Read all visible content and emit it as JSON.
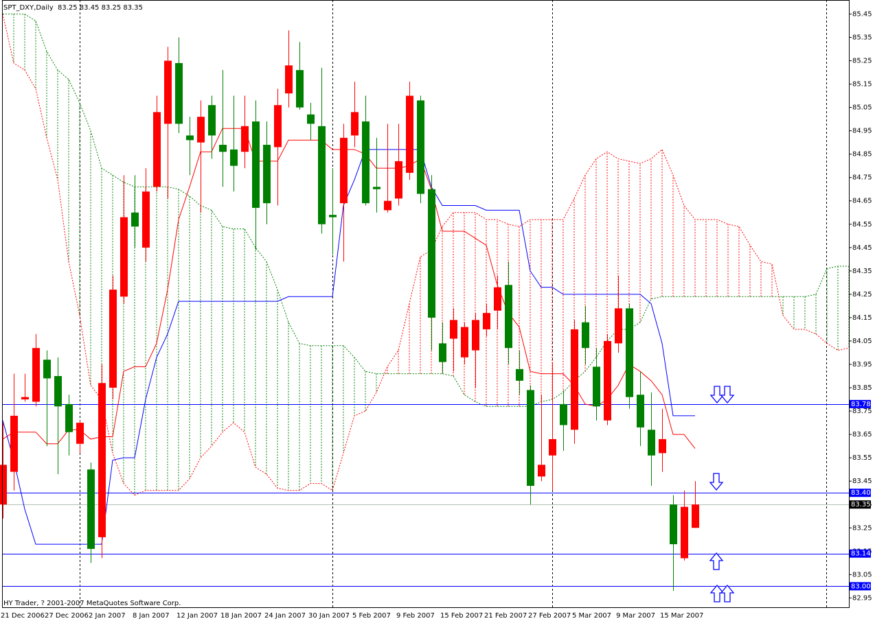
{
  "chart_data": {
    "type": "candlestick",
    "title": "SPT_DXY,Daily  83.25 83.45 83.25 83.35",
    "footer": "HY Trader, ? 2001-2007 MetaQuotes Software Corp.",
    "categories": [
      "21 Dec 2006",
      null,
      null,
      null,
      "27 Dec 2006",
      null,
      null,
      null,
      "2 Jan 2007",
      null,
      null,
      null,
      "8 Jan 2007",
      null,
      null,
      null,
      "12 Jan 2007",
      null,
      null,
      null,
      "18 Jan 2007",
      null,
      null,
      null,
      "24 Jan 2007",
      null,
      null,
      null,
      "30 Jan 2007",
      null,
      null,
      null,
      "5 Feb 2007",
      null,
      null,
      null,
      "9 Feb 2007",
      null,
      null,
      null,
      "15 Feb 2007",
      null,
      null,
      null,
      "21 Feb 2007",
      null,
      null,
      null,
      "27 Feb 2007",
      null,
      null,
      null,
      "5 Mar 2007",
      null,
      null,
      null,
      "9 Mar 2007",
      null,
      null,
      null,
      "15 Mar 2007",
      null,
      null,
      null,
      null,
      null,
      null,
      null,
      null,
      null,
      null,
      null,
      null,
      null,
      null,
      null,
      null,
      null
    ],
    "open": [
      83.35,
      83.49,
      83.8,
      83.79,
      83.97,
      83.9,
      83.78,
      83.61,
      83.5,
      83.21,
      83.85,
      84.24,
      84.6,
      84.45,
      84.71,
      84.98,
      85.24,
      84.93,
      84.9,
      85.06,
      84.89,
      84.87,
      84.86,
      84.99,
      84.89,
      84.88,
      85.11,
      85.21,
      85.02,
      84.97,
      84.59,
      84.64,
      84.93,
      84.99,
      84.71,
      84.61,
      84.66,
      84.77,
      85.08,
      84.7,
      84.04,
      84.06,
      83.98,
      84.01,
      84.1,
      84.18,
      84.29,
      83.93,
      83.84,
      83.47,
      83.56,
      83.78,
      83.67,
      84.13,
      83.94,
      83.71,
      84.04,
      84.19,
      83.82,
      83.67,
      83.57,
      83.35,
      83.12,
      83.25,
      null,
      null,
      null,
      null,
      null,
      null,
      null,
      null,
      null,
      null,
      null,
      null,
      null,
      null
    ],
    "high": [
      83.7,
      83.91,
      83.91,
      84.08,
      84.01,
      83.98,
      83.82,
      83.71,
      83.53,
      83.95,
      84.33,
      84.76,
      84.76,
      84.79,
      85.1,
      85.31,
      85.35,
      85.01,
      85.08,
      85.1,
      85.21,
      85.1,
      85.1,
      85.08,
      84.99,
      85.13,
      85.38,
      85.33,
      85.07,
      85.22,
      84.79,
      84.98,
      85.16,
      85.1,
      84.92,
      84.98,
      84.98,
      85.16,
      85.1,
      84.76,
      84.13,
      84.19,
      84.13,
      84.17,
      84.21,
      84.33,
      84.39,
      84.01,
      83.86,
      83.82,
      83.96,
      83.84,
      84.14,
      84.2,
      84.02,
      84.08,
      84.33,
      84.21,
      83.92,
      83.83,
      83.76,
      83.39,
      83.41,
      83.45,
      null,
      null,
      null,
      null,
      null,
      null,
      null,
      null,
      null,
      null,
      null,
      null,
      null,
      null
    ],
    "low": [
      83.29,
      83.41,
      83.79,
      83.77,
      83.6,
      83.48,
      83.56,
      83.57,
      83.1,
      83.12,
      83.8,
      84.21,
      84.45,
      84.39,
      84.69,
      84.66,
      84.94,
      84.76,
      84.6,
      84.83,
      84.71,
      84.69,
      84.79,
      84.44,
      84.55,
      84.63,
      85.05,
      85.04,
      84.91,
      84.51,
      84.42,
      84.39,
      84.88,
      84.63,
      84.6,
      84.6,
      84.63,
      84.74,
      84.64,
      84.01,
      83.91,
      83.92,
      83.95,
      83.85,
      84.07,
      84.1,
      83.95,
      83.82,
      83.35,
      83.45,
      83.41,
      83.58,
      83.61,
      83.95,
      83.71,
      83.69,
      84.0,
      83.76,
      83.6,
      83.43,
      83.49,
      82.98,
      83.11,
      83.25,
      null,
      null,
      null,
      null,
      null,
      null,
      null,
      null,
      null,
      null,
      null,
      null,
      null,
      null
    ],
    "close": [
      83.52,
      83.73,
      83.81,
      84.02,
      83.89,
      83.77,
      83.66,
      83.7,
      83.16,
      83.87,
      84.27,
      84.58,
      84.54,
      84.69,
      85.03,
      85.25,
      84.98,
      84.91,
      85.01,
      84.93,
      84.86,
      84.8,
      84.97,
      84.62,
      84.64,
      85.06,
      85.23,
      85.05,
      84.98,
      84.55,
      84.58,
      84.92,
      85.03,
      84.64,
      84.7,
      84.65,
      84.82,
      85.1,
      84.68,
      84.15,
      83.96,
      84.14,
      84.11,
      84.14,
      84.17,
      84.28,
      84.02,
      83.88,
      83.43,
      83.52,
      83.63,
      83.69,
      84.1,
      84.02,
      83.77,
      84.05,
      84.19,
      83.81,
      83.68,
      83.56,
      83.63,
      83.18,
      83.34,
      83.35,
      null,
      null,
      null,
      null,
      null,
      null,
      null,
      null,
      null,
      null,
      null,
      null,
      null,
      null
    ],
    "up_color": "#ff0000",
    "down_color": "#008000",
    "tenkan": {
      "color": "#ff0000",
      "values": [
        83.63,
        83.66,
        83.66,
        83.66,
        83.61,
        83.61,
        83.67,
        83.67,
        83.63,
        83.64,
        83.64,
        83.92,
        83.94,
        83.94,
        84.04,
        84.27,
        84.57,
        84.71,
        84.86,
        84.86,
        84.96,
        84.96,
        84.96,
        84.82,
        84.82,
        84.82,
        84.91,
        84.91,
        84.91,
        84.91,
        84.87,
        84.87,
        84.87,
        84.85,
        84.79,
        84.79,
        84.79,
        84.8,
        84.83,
        84.7,
        84.52,
        84.52,
        84.52,
        84.49,
        84.46,
        84.29,
        84.17,
        84.11,
        83.92,
        83.91,
        83.91,
        83.91,
        83.86,
        83.78,
        83.77,
        83.8,
        83.86,
        83.95,
        83.92,
        83.88,
        83.82,
        83.65,
        83.65,
        83.59,
        null,
        null,
        null,
        null,
        null,
        null,
        null,
        null,
        null,
        null,
        null,
        null,
        null,
        null
      ]
    },
    "kijun": {
      "color": "#0000ff",
      "values": [
        83.71,
        83.54,
        83.33,
        83.18,
        83.18,
        83.18,
        83.18,
        83.18,
        83.18,
        83.18,
        83.54,
        83.55,
        83.55,
        83.8,
        83.98,
        84.08,
        84.22,
        84.22,
        84.22,
        84.22,
        84.22,
        84.22,
        84.22,
        84.22,
        84.22,
        84.22,
        84.24,
        84.24,
        84.24,
        84.24,
        84.24,
        84.63,
        84.74,
        84.87,
        84.87,
        84.87,
        84.87,
        84.87,
        84.87,
        84.71,
        84.63,
        84.63,
        84.63,
        84.63,
        84.61,
        84.61,
        84.61,
        84.61,
        84.35,
        84.28,
        84.28,
        84.25,
        84.25,
        84.25,
        84.25,
        84.25,
        84.25,
        84.25,
        84.25,
        84.21,
        84.04,
        83.73,
        83.73,
        83.73,
        null,
        null,
        null,
        null,
        null,
        null,
        null,
        null,
        null,
        null,
        null,
        null,
        null,
        null
      ]
    },
    "span_green": {
      "color": "#008000",
      "values": [
        85.45,
        85.45,
        85.45,
        85.42,
        85.29,
        85.21,
        85.17,
        85.07,
        84.95,
        84.79,
        84.76,
        84.73,
        84.71,
        84.71,
        84.71,
        84.71,
        84.7,
        84.67,
        84.63,
        84.61,
        84.54,
        84.53,
        84.53,
        84.45,
        84.39,
        84.27,
        84.13,
        84.04,
        84.03,
        84.03,
        84.03,
        84.03,
        83.98,
        83.92,
        83.91,
        83.91,
        83.91,
        83.91,
        83.91,
        83.91,
        83.91,
        83.9,
        83.82,
        83.79,
        83.77,
        83.77,
        83.77,
        83.77,
        83.77,
        83.79,
        83.8,
        83.83,
        83.88,
        83.92,
        83.98,
        84.05,
        84.1,
        84.1,
        84.13,
        84.23,
        84.24,
        84.24,
        84.24,
        84.24,
        84.24,
        84.24,
        84.24,
        84.24,
        84.24,
        84.24,
        84.24,
        84.24,
        84.24,
        84.24,
        84.25,
        84.36,
        84.37,
        84.37
      ]
    },
    "span_red": {
      "color": "#ff0000",
      "values": [
        85.45,
        85.24,
        85.21,
        85.13,
        84.92,
        84.74,
        84.39,
        84.16,
        83.86,
        83.8,
        83.57,
        83.44,
        83.39,
        83.41,
        83.41,
        83.41,
        83.41,
        83.46,
        83.55,
        83.6,
        83.66,
        83.7,
        83.66,
        83.51,
        83.48,
        83.42,
        83.41,
        83.41,
        83.44,
        83.44,
        83.41,
        83.57,
        83.73,
        83.75,
        83.83,
        83.94,
        84.01,
        84.21,
        84.41,
        84.44,
        84.54,
        84.6,
        84.6,
        84.6,
        84.57,
        84.57,
        84.55,
        84.54,
        84.57,
        84.57,
        84.57,
        84.57,
        84.66,
        84.76,
        84.83,
        84.86,
        84.83,
        84.82,
        84.81,
        84.83,
        84.87,
        84.76,
        84.63,
        84.57,
        84.57,
        84.57,
        84.55,
        84.54,
        84.46,
        84.39,
        84.38,
        84.16,
        84.1,
        84.1,
        84.08,
        84.04,
        84.01,
        84.02
      ]
    },
    "ylim": [
      82.91,
      85.51
    ],
    "yticks": [
      85.45,
      85.35,
      85.25,
      85.15,
      85.05,
      84.95,
      84.85,
      84.75,
      84.65,
      84.55,
      84.45,
      84.35,
      84.25,
      84.15,
      84.05,
      83.95,
      83.85,
      83.75,
      83.65,
      83.55,
      83.45,
      83.35,
      83.25,
      83.15,
      83.05,
      82.95
    ],
    "levels": {
      "color": "#0000ff",
      "values": [
        83.78,
        {
          "value": 83.4,
          "label": "83.40"
        },
        83.14,
        {
          "value": 83,
          "label": "83.00"
        }
      ]
    },
    "current_price": {
      "value": 83.35,
      "color": "#b4c0b4"
    }
  }
}
